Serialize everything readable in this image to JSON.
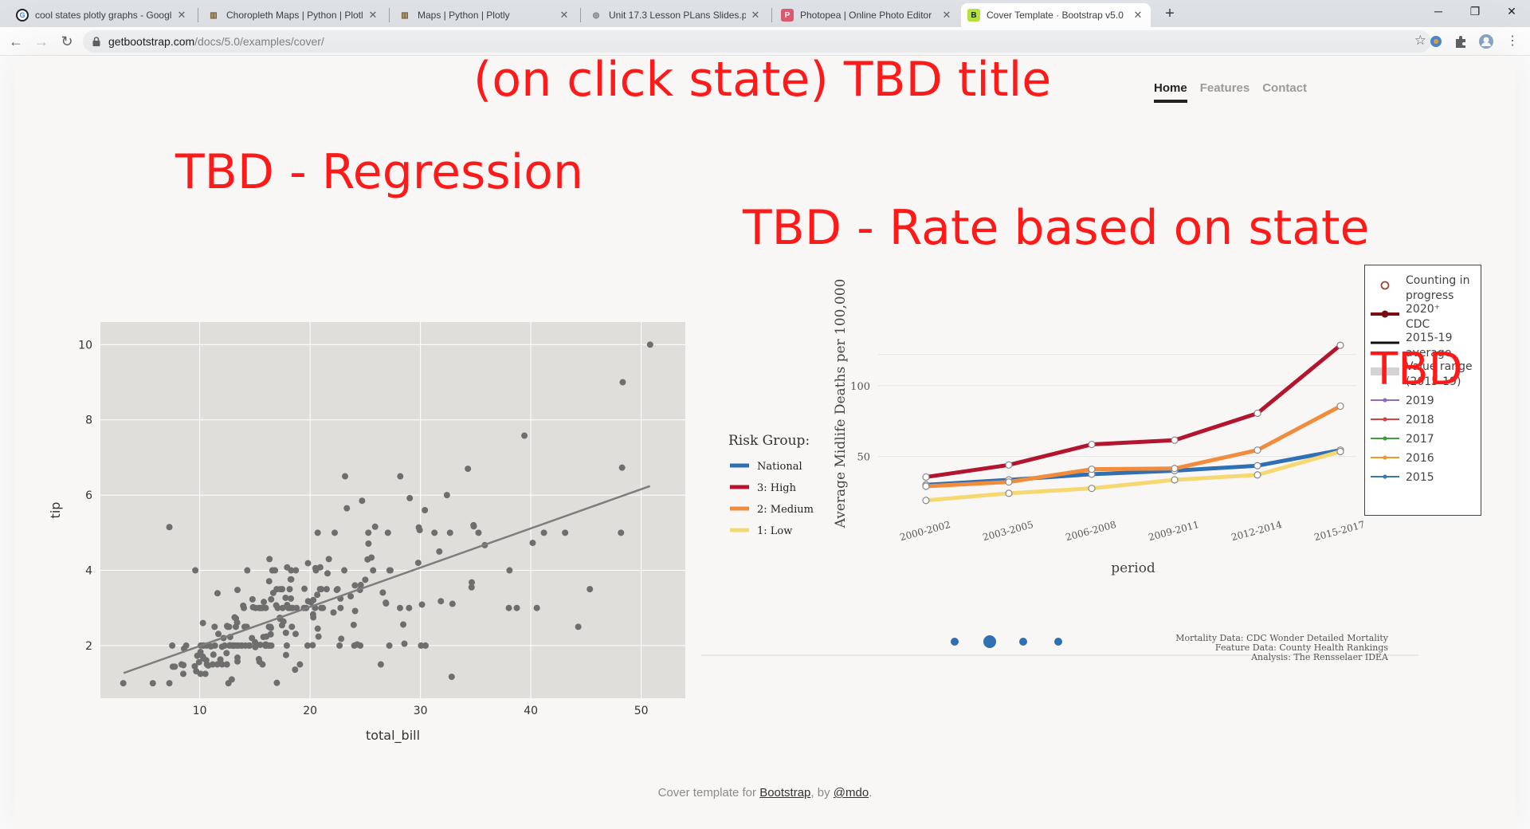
{
  "browser": {
    "tabs": [
      {
        "title": "cool states plotly graphs - Googl",
        "icon": "google-icon"
      },
      {
        "title": "Choropleth Maps | Python | Plotl",
        "icon": "plotly-icon"
      },
      {
        "title": "Maps | Python | Plotly",
        "icon": "plotly-icon"
      },
      {
        "title": "Unit 17.3 Lesson PLans Slides.pdf",
        "icon": "globe-icon"
      },
      {
        "title": "Photopea | Online Photo Editor",
        "icon": "photopea-icon"
      },
      {
        "title": "Cover Template · Bootstrap v5.0",
        "icon": "bootstrap-icon"
      }
    ],
    "url_host": "getbootstrap.com",
    "url_path": "/docs/5.0/examples/cover/"
  },
  "page": {
    "title": "(on click state) TBD title",
    "nav": [
      "Home",
      "Features",
      "Contact"
    ],
    "regression_heading": "TBD - Regression",
    "rate_heading": "TBD - Rate based on state",
    "tbd_overlay": "TBD",
    "footer": {
      "prefix": "Cover template for ",
      "link1": "Bootstrap",
      "middle": ", by ",
      "link2": "@mdo",
      "suffix": "."
    }
  },
  "chart_data": [
    {
      "type": "scatter",
      "xlabel": "total_bill",
      "ylabel": "tip",
      "xlim": [
        1,
        54
      ],
      "ylim": [
        0.6,
        10.6
      ],
      "xticks": [
        10,
        20,
        30,
        40,
        50
      ],
      "yticks": [
        2,
        4,
        6,
        8,
        10
      ],
      "background": "#e0dedb",
      "marker_color": "#6e6e6e",
      "trendline": {
        "x": [
          3.1,
          50.8
        ],
        "y": [
          1.27,
          6.24
        ]
      },
      "points": [
        [
          16.99,
          1.01
        ],
        [
          10.34,
          1.66
        ],
        [
          21.01,
          3.5
        ],
        [
          23.68,
          3.31
        ],
        [
          24.59,
          3.61
        ],
        [
          25.29,
          4.71
        ],
        [
          8.77,
          2.0
        ],
        [
          26.88,
          3.12
        ],
        [
          15.04,
          1.96
        ],
        [
          14.78,
          3.23
        ],
        [
          10.27,
          1.71
        ],
        [
          35.26,
          5.0
        ],
        [
          15.42,
          1.57
        ],
        [
          18.43,
          3.0
        ],
        [
          14.83,
          3.02
        ],
        [
          21.58,
          3.92
        ],
        [
          10.33,
          1.67
        ],
        [
          16.29,
          3.71
        ],
        [
          16.97,
          3.5
        ],
        [
          20.65,
          3.35
        ],
        [
          17.92,
          4.08
        ],
        [
          20.29,
          2.75
        ],
        [
          15.77,
          2.23
        ],
        [
          39.42,
          7.58
        ],
        [
          19.82,
          3.18
        ],
        [
          17.81,
          2.34
        ],
        [
          13.37,
          2.0
        ],
        [
          12.69,
          2.0
        ],
        [
          21.7,
          4.3
        ],
        [
          19.65,
          3.0
        ],
        [
          9.55,
          1.45
        ],
        [
          18.35,
          2.5
        ],
        [
          15.06,
          3.0
        ],
        [
          20.69,
          2.45
        ],
        [
          17.78,
          3.27
        ],
        [
          24.06,
          3.6
        ],
        [
          16.31,
          2.0
        ],
        [
          16.93,
          3.07
        ],
        [
          18.69,
          2.31
        ],
        [
          31.27,
          5.0
        ],
        [
          16.04,
          2.24
        ],
        [
          17.46,
          2.54
        ],
        [
          13.94,
          3.06
        ],
        [
          9.68,
          1.32
        ],
        [
          30.4,
          5.6
        ],
        [
          18.29,
          3.0
        ],
        [
          22.23,
          5.0
        ],
        [
          32.4,
          6.0
        ],
        [
          28.55,
          2.05
        ],
        [
          18.04,
          3.0
        ],
        [
          12.54,
          2.5
        ],
        [
          10.29,
          2.6
        ],
        [
          34.81,
          5.2
        ],
        [
          9.94,
          1.56
        ],
        [
          25.56,
          4.34
        ],
        [
          19.49,
          3.51
        ],
        [
          38.01,
          3.0
        ],
        [
          26.41,
          1.5
        ],
        [
          11.24,
          1.76
        ],
        [
          48.27,
          6.73
        ],
        [
          20.29,
          3.21
        ],
        [
          13.81,
          2.0
        ],
        [
          11.02,
          1.98
        ],
        [
          18.29,
          3.76
        ],
        [
          17.59,
          2.64
        ],
        [
          20.08,
          3.15
        ],
        [
          16.45,
          2.47
        ],
        [
          3.07,
          1.0
        ],
        [
          20.23,
          2.01
        ],
        [
          15.01,
          2.09
        ],
        [
          12.02,
          1.97
        ],
        [
          17.07,
          3.0
        ],
        [
          26.86,
          3.14
        ],
        [
          25.28,
          5.0
        ],
        [
          14.73,
          2.2
        ],
        [
          10.51,
          1.25
        ],
        [
          17.92,
          3.08
        ],
        [
          27.2,
          4.0
        ],
        [
          22.76,
          3.0
        ],
        [
          17.29,
          2.71
        ],
        [
          19.44,
          3.0
        ],
        [
          16.66,
          3.4
        ],
        [
          10.07,
          1.83
        ],
        [
          32.68,
          5.0
        ],
        [
          15.98,
          2.03
        ],
        [
          34.83,
          5.17
        ],
        [
          13.03,
          2.0
        ],
        [
          18.28,
          4.0
        ],
        [
          24.71,
          5.85
        ],
        [
          21.16,
          3.0
        ],
        [
          28.97,
          3.0
        ],
        [
          22.49,
          3.5
        ],
        [
          5.75,
          1.0
        ],
        [
          16.32,
          4.3
        ],
        [
          22.75,
          3.25
        ],
        [
          40.17,
          4.73
        ],
        [
          27.28,
          4.0
        ],
        [
          12.03,
          1.5
        ],
        [
          21.01,
          3.0
        ],
        [
          12.46,
          1.5
        ],
        [
          11.35,
          2.5
        ],
        [
          15.38,
          3.0
        ],
        [
          44.3,
          2.5
        ],
        [
          22.42,
          3.48
        ],
        [
          20.92,
          4.08
        ],
        [
          15.36,
          1.64
        ],
        [
          20.49,
          4.06
        ],
        [
          25.21,
          4.29
        ],
        [
          18.24,
          3.76
        ],
        [
          14.31,
          4.0
        ],
        [
          14.0,
          3.0
        ],
        [
          7.25,
          1.0
        ],
        [
          38.07,
          4.0
        ],
        [
          23.95,
          2.55
        ],
        [
          25.71,
          4.0
        ],
        [
          17.31,
          3.5
        ],
        [
          29.93,
          5.07
        ],
        [
          10.65,
          1.5
        ],
        [
          12.43,
          1.8
        ],
        [
          24.08,
          2.92
        ],
        [
          11.69,
          2.31
        ],
        [
          13.42,
          1.68
        ],
        [
          14.26,
          2.5
        ],
        [
          15.95,
          2.0
        ],
        [
          12.48,
          2.52
        ],
        [
          29.8,
          4.2
        ],
        [
          8.52,
          1.48
        ],
        [
          14.52,
          2.0
        ],
        [
          11.38,
          2.0
        ],
        [
          22.82,
          2.18
        ],
        [
          19.08,
          1.5
        ],
        [
          20.27,
          2.83
        ],
        [
          11.17,
          1.5
        ],
        [
          12.26,
          2.0
        ],
        [
          18.26,
          3.25
        ],
        [
          8.51,
          1.25
        ],
        [
          10.33,
          2.0
        ],
        [
          14.15,
          2.0
        ],
        [
          16.0,
          2.0
        ],
        [
          13.16,
          2.75
        ],
        [
          17.47,
          3.5
        ],
        [
          34.3,
          6.7
        ],
        [
          41.19,
          5.0
        ],
        [
          27.05,
          5.0
        ],
        [
          16.43,
          2.3
        ],
        [
          8.35,
          1.5
        ],
        [
          18.64,
          1.36
        ],
        [
          11.87,
          1.63
        ],
        [
          9.78,
          1.73
        ],
        [
          7.51,
          2.0
        ],
        [
          14.07,
          2.5
        ],
        [
          13.13,
          2.0
        ],
        [
          17.26,
          2.74
        ],
        [
          24.55,
          2.0
        ],
        [
          19.77,
          2.0
        ],
        [
          29.85,
          5.14
        ],
        [
          48.17,
          5.0
        ],
        [
          25.0,
          3.75
        ],
        [
          13.39,
          2.61
        ],
        [
          16.49,
          2.0
        ],
        [
          21.5,
          3.5
        ],
        [
          12.66,
          2.5
        ],
        [
          16.21,
          2.0
        ],
        [
          13.81,
          2.0
        ],
        [
          17.51,
          3.0
        ],
        [
          24.52,
          3.48
        ],
        [
          20.76,
          2.24
        ],
        [
          31.71,
          4.5
        ],
        [
          10.59,
          1.61
        ],
        [
          10.63,
          2.0
        ],
        [
          50.81,
          10.0
        ],
        [
          15.81,
          3.16
        ],
        [
          7.25,
          5.15
        ],
        [
          31.85,
          3.18
        ],
        [
          16.82,
          4.0
        ],
        [
          32.9,
          3.11
        ],
        [
          17.89,
          2.0
        ],
        [
          14.48,
          2.0
        ],
        [
          9.6,
          4.0
        ],
        [
          34.63,
          3.55
        ],
        [
          34.65,
          3.68
        ],
        [
          23.33,
          5.65
        ],
        [
          45.35,
          3.5
        ],
        [
          23.17,
          6.5
        ],
        [
          40.55,
          3.0
        ],
        [
          20.69,
          5.0
        ],
        [
          20.9,
          3.5
        ],
        [
          30.46,
          2.0
        ],
        [
          18.15,
          3.5
        ],
        [
          23.1,
          4.0
        ],
        [
          15.69,
          1.5
        ],
        [
          19.81,
          4.19
        ],
        [
          28.44,
          2.56
        ],
        [
          15.48,
          2.02
        ],
        [
          16.58,
          4.0
        ],
        [
          7.56,
          1.44
        ],
        [
          10.34,
          2.0
        ],
        [
          43.11,
          5.0
        ],
        [
          13.0,
          2.0
        ],
        [
          13.51,
          2.0
        ],
        [
          18.71,
          4.0
        ],
        [
          12.74,
          2.01
        ],
        [
          13.0,
          2.0
        ],
        [
          16.4,
          2.5
        ],
        [
          20.53,
          4.0
        ],
        [
          16.47,
          3.23
        ],
        [
          26.59,
          3.41
        ],
        [
          38.73,
          3.0
        ],
        [
          24.27,
          2.03
        ],
        [
          12.76,
          2.23
        ],
        [
          30.06,
          2.0
        ],
        [
          25.89,
          5.16
        ],
        [
          48.33,
          9.0
        ],
        [
          13.27,
          2.5
        ],
        [
          28.17,
          6.5
        ],
        [
          12.9,
          1.1
        ],
        [
          28.15,
          3.0
        ],
        [
          11.59,
          1.5
        ],
        [
          7.74,
          1.44
        ],
        [
          30.14,
          3.09
        ],
        [
          12.16,
          2.2
        ],
        [
          13.42,
          3.48
        ],
        [
          8.58,
          1.92
        ],
        [
          15.98,
          3.0
        ],
        [
          13.42,
          1.58
        ],
        [
          16.27,
          2.5
        ],
        [
          10.09,
          2.0
        ],
        [
          20.45,
          3.0
        ],
        [
          13.28,
          2.72
        ],
        [
          22.12,
          2.88
        ],
        [
          24.01,
          2.0
        ],
        [
          15.69,
          3.0
        ],
        [
          11.61,
          3.39
        ],
        [
          10.77,
          1.47
        ],
        [
          15.53,
          3.0
        ],
        [
          10.07,
          1.25
        ],
        [
          12.6,
          1.0
        ],
        [
          32.83,
          1.17
        ],
        [
          35.83,
          4.67
        ],
        [
          29.03,
          5.92
        ],
        [
          27.18,
          2.0
        ],
        [
          22.67,
          2.0
        ],
        [
          17.82,
          1.75
        ],
        [
          18.78,
          3.0
        ]
      ]
    },
    {
      "type": "line",
      "categories": [
        "2000-2002",
        "2003-2005",
        "2006-2008",
        "2009-2011",
        "2012-2014",
        "2015-2017"
      ],
      "xlabel": "period",
      "ylabel": "Average Midlife Deaths per 100,000",
      "ylim": [
        20,
        155
      ],
      "yticks": [
        50,
        100
      ],
      "legend_title": "Risk Group:",
      "series": [
        {
          "name": "National",
          "color": "#2f6fb3",
          "values": [
            30,
            33.5,
            37.5,
            40,
            43.5,
            54.5
          ]
        },
        {
          "name": "3: High",
          "color": "#b2152d",
          "values": [
            35.5,
            44,
            58.5,
            61.5,
            80.5,
            128.5
          ]
        },
        {
          "name": "2: Medium",
          "color": "#f08c3c",
          "values": [
            29,
            32,
            41,
            41.5,
            54.5,
            85.5
          ]
        },
        {
          "name": "1: Low",
          "color": "#f6d873",
          "values": [
            19,
            24,
            27.5,
            33.5,
            37,
            53.5
          ]
        }
      ],
      "credits": [
        "Mortality Data: CDC Wonder Detailed Mortality",
        "Feature Data: County Health Rankings",
        "Analysis: The Rensselaer IDEA"
      ],
      "legend2": [
        {
          "label": "Counting in progress",
          "style": "open-circle",
          "color": "#9b4a3a"
        },
        {
          "label": "2020⁺ CDC",
          "style": "thick-line",
          "color": "#7a0c14"
        },
        {
          "label": "2015-19 average",
          "style": "black-line",
          "color": "#111111"
        },
        {
          "label": "Value range (2015-19)",
          "style": "band",
          "color": "#d3d3d3"
        },
        {
          "label": "2019",
          "style": "thin-line",
          "color": "#8e6bbf"
        },
        {
          "label": "2018",
          "style": "thin-line",
          "color": "#d94040"
        },
        {
          "label": "2017",
          "style": "thin-line",
          "color": "#3ca03c"
        },
        {
          "label": "2016",
          "style": "thin-line",
          "color": "#f0962d"
        },
        {
          "label": "2015",
          "style": "thin-line",
          "color": "#3a78b5"
        }
      ]
    }
  ]
}
